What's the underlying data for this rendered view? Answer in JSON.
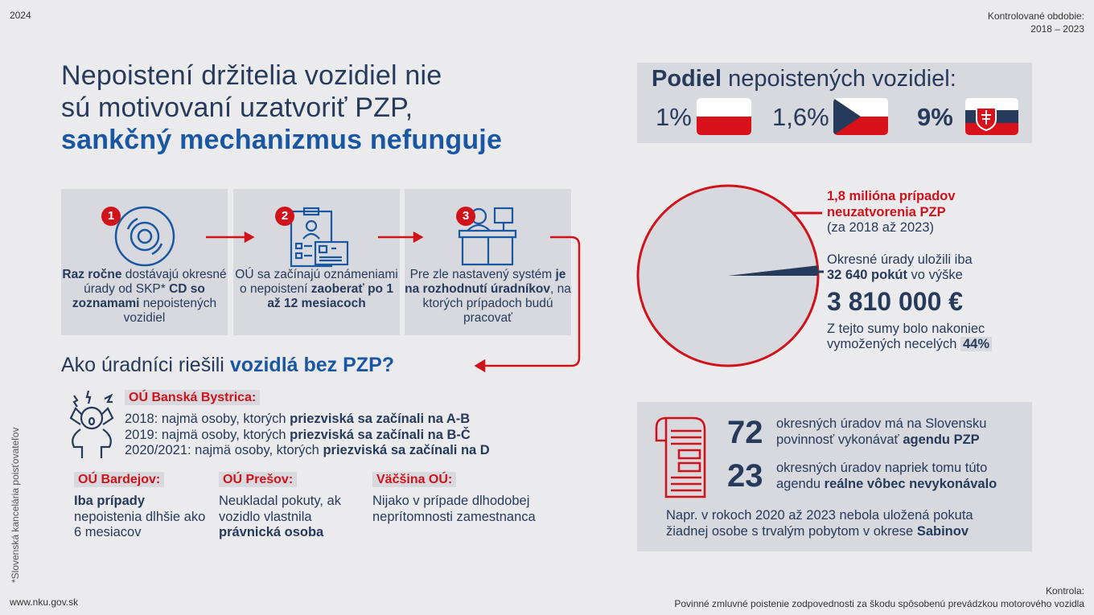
{
  "header": {
    "year": "2024",
    "period_label": "Kontrolované obdobie:",
    "period": "2018 – 2023"
  },
  "title": {
    "line1": "Nepoistení držitelia vozidiel nie",
    "line2": "sú motivovaní uzatvoriť PZP,",
    "line3": "sankčný mechanizmus nefunguje"
  },
  "steps": [
    {
      "number": "1",
      "icon": "cd-icon",
      "parts": [
        [
          "Raz ročne",
          true
        ],
        [
          " dostávajú okresné úrady od SKP* ",
          false
        ],
        [
          "CD so zoznamami",
          true
        ],
        [
          " nepoistených vozidiel",
          false
        ]
      ]
    },
    {
      "number": "2",
      "icon": "clipboard-id-icon",
      "parts": [
        [
          "OÚ sa začínajú oznámeniami o nepoistení ",
          false
        ],
        [
          "zaoberať po 1 až 12 mesiacoch",
          true
        ]
      ]
    },
    {
      "number": "3",
      "icon": "office-desk-icon",
      "parts": [
        [
          "Pre zle nastavený systém ",
          false
        ],
        [
          "je na rozhodnutí úradníkov",
          true
        ],
        [
          ", na ktorých prípadoch budú pracovať",
          false
        ]
      ]
    }
  ],
  "section": {
    "prefix": "Ako úradníci riešili ",
    "highlight": "vozidlá bez PZP?"
  },
  "bb": {
    "label": "OÚ Banská Bystrica:",
    "rows": [
      {
        "a": "2018: najmä osoby, ktorých ",
        "b": "priezviská sa začínali na A-B"
      },
      {
        "a": "2019: najmä osoby, ktorých ",
        "b": "priezviská sa začínali na B-Č"
      },
      {
        "a": "2020/2021: najmä osoby, ktorých ",
        "b": "priezviská sa začínali na D"
      }
    ]
  },
  "offices": [
    {
      "label": "OÚ Bardejov:",
      "bold1": "Iba prípady",
      "text": "nepoistenia dlhšie ako 6 mesiacov",
      "bold2": ""
    },
    {
      "label": "OÚ Prešov:",
      "bold1": "",
      "text": "Neukladal pokuty, ak vozidlo vlastnila",
      "bold2": "právnická osoba"
    },
    {
      "label": "Väčšina OÚ:",
      "bold1": "",
      "text": "Nijako v prípade dlhodobej neprítomnosti zamestnanca",
      "bold2": ""
    }
  ],
  "footnote": "*Slovenská kancelária poisťovateľov",
  "footer": {
    "url": "www.nku.gov.sk",
    "audit_label": "Kontrola:",
    "audit": "Povinné zmluvné poistenie zodpovednosti za škodu spôsobenú prevádzkou motorového vozidla"
  },
  "share": {
    "title_bold": "Podiel",
    "title": " nepoistených vozidiel:",
    "items": [
      {
        "value": "1%",
        "flag": "poland"
      },
      {
        "value": "1,6%",
        "flag": "czechia"
      },
      {
        "value": "9%",
        "flag": "slovakia"
      }
    ]
  },
  "pie": {
    "cases": 1800000,
    "fines": 32640,
    "colors": {
      "outline": "#d0121b",
      "fill": "#d7d9de",
      "wedge": "#263a5c"
    }
  },
  "stats": {
    "cases1": "1,8 milióna prípadov",
    "cases2": "neuzatvorenia PZP",
    "cases_period": "(za 2018 až 2023)",
    "fines_pre": "Okresné úrady uložili iba",
    "fines_bold": "32 640 pokút",
    "fines_post": " vo výške",
    "amount": "3 810 000 €",
    "recovered1": "Z tejto sumy bolo nakoniec",
    "recovered2": "vymožených necelých ",
    "recovered_pct": "44%"
  },
  "offices_box": {
    "n1": "72",
    "t1a": "okresných úradov má na Slovensku",
    "t1b": "povinnosť vykonávať ",
    "t1bold": "agendu PZP",
    "n2": "23",
    "t2a": "okresných úradov napriek tomu túto",
    "t2b": "agendu ",
    "t2bold": "reálne vôbec nevykonávalo",
    "note1": "Napr. v rokoch 2020 až 2023 nebola uložená pokuta",
    "note2": "žiadnej osobe s trvalým pobytom v okrese ",
    "note_bold": "Sabinov"
  },
  "colors": {
    "navy": "#263a5c",
    "blue": "#1a57a3",
    "red": "#d0121b",
    "panel": "#d7d9de"
  }
}
